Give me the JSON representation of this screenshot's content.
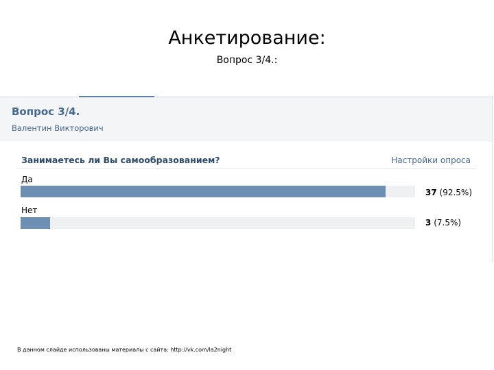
{
  "slide": {
    "title": "Анкетирование:",
    "subtitle": "Вопрос 3/4.:",
    "footer": "В данном слайде использованы материалы с сайта: http://vk.com/la2night"
  },
  "poll": {
    "header": "Вопрос 3/4.",
    "author": "Валентин Викторович",
    "question": "Занимаетесь ли Вы самообразованием?",
    "settings_link": "Настройки опроса",
    "bar_color": "#6d8fb3",
    "options": [
      {
        "label": "Да",
        "count": "37",
        "percent": "(92.5%)",
        "fraction": 0.925
      },
      {
        "label": "Нет",
        "count": "3",
        "percent": "(7.5%)",
        "fraction": 0.075
      }
    ]
  }
}
